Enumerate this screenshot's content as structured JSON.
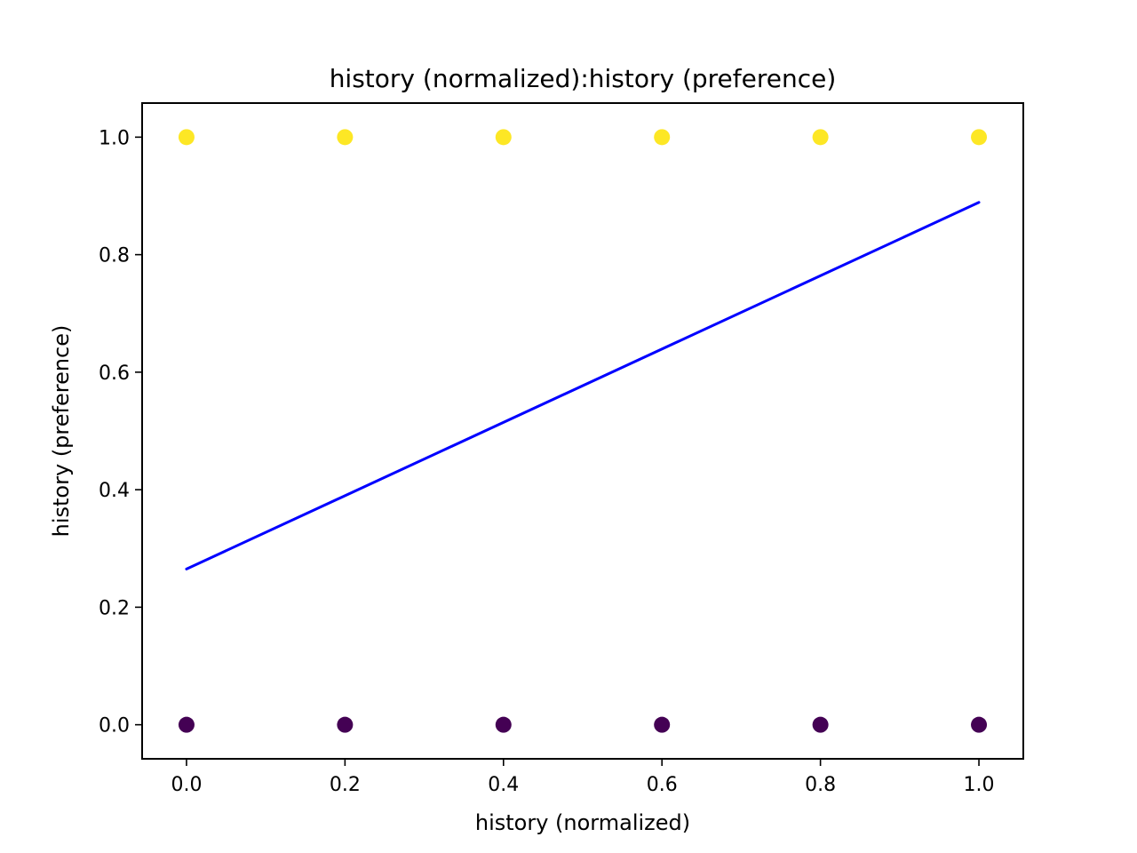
{
  "chart_data": {
    "type": "scatter",
    "title": "history (normalized):history (preference)",
    "xlabel": "history (normalized)",
    "ylabel": "history (preference)",
    "xlim": [
      -0.056,
      1.056
    ],
    "ylim": [
      -0.058,
      1.058
    ],
    "x_ticks": [
      "0.0",
      "0.2",
      "0.4",
      "0.6",
      "0.8",
      "1.0"
    ],
    "y_ticks": [
      "0.0",
      "0.2",
      "0.4",
      "0.6",
      "0.8",
      "1.0"
    ],
    "grid": false,
    "legend": "none",
    "colors": {
      "class_1": "#fde725",
      "class_0": "#440154",
      "fit_line": "#0000ff",
      "axes": "#000000"
    },
    "series": [
      {
        "type": "scatter",
        "color_key": "class_1",
        "x": [
          0.0,
          0.2,
          0.4,
          0.6,
          0.8,
          1.0
        ],
        "y": [
          1.0,
          1.0,
          1.0,
          1.0,
          1.0,
          1.0
        ]
      },
      {
        "type": "scatter",
        "color_key": "class_0",
        "x": [
          0.0,
          0.2,
          0.4,
          0.6,
          0.8,
          1.0
        ],
        "y": [
          0.0,
          0.0,
          0.0,
          0.0,
          0.0,
          0.0
        ]
      },
      {
        "type": "line",
        "color_key": "fit_line",
        "x": [
          0.0,
          1.0
        ],
        "y": [
          0.265,
          0.889
        ]
      }
    ]
  }
}
